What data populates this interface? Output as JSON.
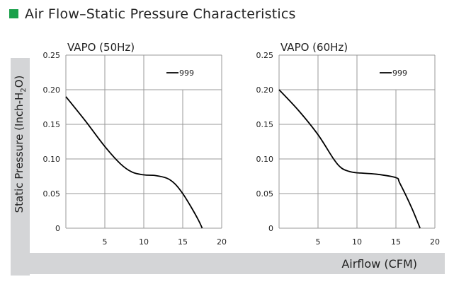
{
  "page": {
    "title": "Air Flow–Static Pressure Characteristics",
    "accent_color": "#1aa04a",
    "icon": "green-square-bullet"
  },
  "axes": {
    "ylabel_main": "Static Pressure (Inch-H",
    "ylabel_sub": "2",
    "ylabel_end": "O)",
    "xlabel": "Airflow (CFM)"
  },
  "chart_data": [
    {
      "type": "line",
      "title": "VAPO (50Hz)",
      "xlabel": "Airflow (CFM)",
      "ylabel": "Static Pressure (Inch-H2O)",
      "xlim": [
        0,
        20
      ],
      "ylim": [
        0,
        0.25
      ],
      "xticks": [
        "5",
        "10",
        "15",
        "20"
      ],
      "yticks": [
        "0",
        "0.05",
        "0.10",
        "0.15",
        "0.20",
        "0.25"
      ],
      "grid": true,
      "legend": "top-right",
      "series": [
        {
          "name": "999",
          "color": "#000000",
          "x": [
            0,
            2.5,
            5,
            7,
            8.5,
            10,
            11.5,
            13,
            14,
            15,
            16,
            17,
            17.5
          ],
          "y": [
            0.19,
            0.155,
            0.118,
            0.093,
            0.081,
            0.077,
            0.076,
            0.072,
            0.064,
            0.05,
            0.032,
            0.012,
            0
          ]
        }
      ]
    },
    {
      "type": "line",
      "title": "VAPO (60Hz)",
      "xlabel": "Airflow (CFM)",
      "ylabel": "Static Pressure (Inch-H2O)",
      "xlim": [
        0,
        20
      ],
      "ylim": [
        0,
        0.25
      ],
      "xticks": [
        "5",
        "10",
        "15",
        "20"
      ],
      "yticks": [
        "0",
        "0.05",
        "0.10",
        "0.15",
        "0.20",
        "0.25"
      ],
      "grid": true,
      "legend": "top-right",
      "series": [
        {
          "name": "999",
          "color": "#000000",
          "x": [
            0,
            2.5,
            5,
            7,
            8,
            9,
            10,
            12.5,
            15,
            15.5,
            17,
            18.1
          ],
          "y": [
            0.2,
            0.17,
            0.135,
            0.1,
            0.087,
            0.082,
            0.08,
            0.078,
            0.073,
            0.065,
            0.03,
            0
          ]
        }
      ]
    }
  ]
}
